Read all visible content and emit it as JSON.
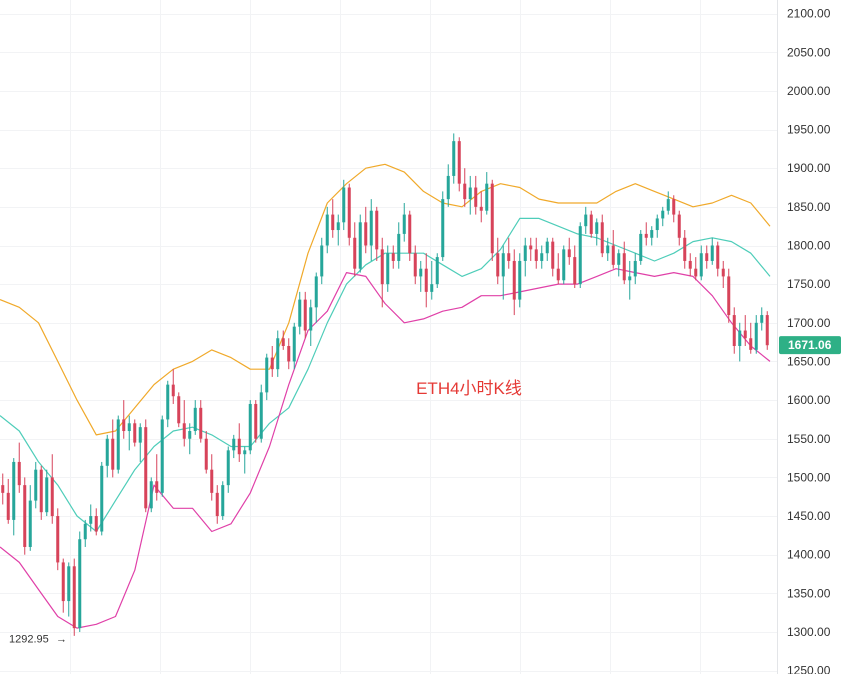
{
  "chart_data": {
    "type": "candlestick",
    "title": "",
    "annotation": "ETH4小时K线",
    "xlabel": "",
    "ylabel": "",
    "y_axis_side": "right",
    "ylim": [
      1250,
      2110
    ],
    "y_ticks": [
      "1250.00",
      "1300.00",
      "1350.00",
      "1400.00",
      "1450.00",
      "1500.00",
      "1550.00",
      "1600.00",
      "1650.00",
      "1700.00",
      "1750.00",
      "1800.00",
      "1850.00",
      "1900.00",
      "1950.00",
      "2000.00",
      "2050.00",
      "2100.00"
    ],
    "y_tick_values": [
      1250,
      1300,
      1350,
      1400,
      1450,
      1500,
      1550,
      1600,
      1650,
      1700,
      1750,
      1800,
      1850,
      1900,
      1950,
      2000,
      2050,
      2100
    ],
    "grid": true,
    "last_price_label": "1671.06",
    "last_price": 1671.06,
    "low_marker_label": "1292.95",
    "low_marker_value": 1292.95,
    "low_marker_arrow": "→",
    "colors": {
      "up": "#26a69a",
      "down": "#d7435a",
      "upper_band": "#f0a92a",
      "middle_band": "#4ecdb9",
      "lower_band": "#e040a8",
      "annotation": "#e53935",
      "axis_text": "#333333",
      "grid": "#f2f3f5",
      "price_tag": "#2eb086"
    },
    "candles": [
      [
        1490,
        1505,
        1465,
        1480
      ],
      [
        1480,
        1498,
        1440,
        1445
      ],
      [
        1445,
        1525,
        1425,
        1520
      ],
      [
        1520,
        1545,
        1480,
        1490
      ],
      [
        1490,
        1500,
        1400,
        1410
      ],
      [
        1410,
        1490,
        1405,
        1470
      ],
      [
        1470,
        1520,
        1460,
        1510
      ],
      [
        1510,
        1515,
        1445,
        1455
      ],
      [
        1455,
        1510,
        1450,
        1500
      ],
      [
        1500,
        1530,
        1440,
        1450
      ],
      [
        1450,
        1460,
        1380,
        1390
      ],
      [
        1390,
        1395,
        1325,
        1340
      ],
      [
        1340,
        1390,
        1320,
        1385
      ],
      [
        1385,
        1395,
        1295,
        1305
      ],
      [
        1305,
        1430,
        1300,
        1420
      ],
      [
        1420,
        1445,
        1410,
        1440
      ],
      [
        1440,
        1465,
        1430,
        1450
      ],
      [
        1450,
        1460,
        1425,
        1430
      ],
      [
        1430,
        1520,
        1425,
        1515
      ],
      [
        1515,
        1555,
        1500,
        1550
      ],
      [
        1550,
        1575,
        1500,
        1510
      ],
      [
        1510,
        1580,
        1505,
        1575
      ],
      [
        1575,
        1600,
        1550,
        1560
      ],
      [
        1560,
        1580,
        1535,
        1570
      ],
      [
        1570,
        1575,
        1540,
        1545
      ],
      [
        1545,
        1570,
        1520,
        1565
      ],
      [
        1565,
        1575,
        1455,
        1460
      ],
      [
        1460,
        1500,
        1455,
        1495
      ],
      [
        1495,
        1530,
        1470,
        1480
      ],
      [
        1480,
        1580,
        1475,
        1575
      ],
      [
        1575,
        1625,
        1565,
        1620
      ],
      [
        1620,
        1640,
        1595,
        1605
      ],
      [
        1605,
        1610,
        1565,
        1570
      ],
      [
        1570,
        1600,
        1540,
        1550
      ],
      [
        1550,
        1570,
        1530,
        1560
      ],
      [
        1560,
        1600,
        1555,
        1590
      ],
      [
        1590,
        1600,
        1545,
        1550
      ],
      [
        1550,
        1560,
        1505,
        1510
      ],
      [
        1510,
        1530,
        1470,
        1480
      ],
      [
        1480,
        1490,
        1440,
        1450
      ],
      [
        1450,
        1495,
        1445,
        1490
      ],
      [
        1490,
        1540,
        1480,
        1535
      ],
      [
        1535,
        1555,
        1525,
        1550
      ],
      [
        1550,
        1570,
        1520,
        1530
      ],
      [
        1530,
        1540,
        1505,
        1535
      ],
      [
        1535,
        1600,
        1530,
        1595
      ],
      [
        1595,
        1600,
        1545,
        1550
      ],
      [
        1550,
        1620,
        1545,
        1610
      ],
      [
        1610,
        1660,
        1600,
        1655
      ],
      [
        1655,
        1670,
        1630,
        1640
      ],
      [
        1640,
        1690,
        1630,
        1680
      ],
      [
        1680,
        1690,
        1665,
        1670
      ],
      [
        1670,
        1680,
        1640,
        1650
      ],
      [
        1650,
        1700,
        1640,
        1695
      ],
      [
        1695,
        1740,
        1685,
        1730
      ],
      [
        1730,
        1740,
        1680,
        1690
      ],
      [
        1690,
        1730,
        1670,
        1720
      ],
      [
        1720,
        1765,
        1700,
        1760
      ],
      [
        1760,
        1810,
        1750,
        1800
      ],
      [
        1800,
        1850,
        1790,
        1840
      ],
      [
        1840,
        1860,
        1810,
        1820
      ],
      [
        1820,
        1840,
        1800,
        1830
      ],
      [
        1830,
        1885,
        1820,
        1875
      ],
      [
        1875,
        1880,
        1800,
        1810
      ],
      [
        1810,
        1830,
        1760,
        1770
      ],
      [
        1770,
        1840,
        1765,
        1830
      ],
      [
        1830,
        1850,
        1790,
        1800
      ],
      [
        1800,
        1860,
        1780,
        1845
      ],
      [
        1845,
        1850,
        1780,
        1795
      ],
      [
        1795,
        1810,
        1720,
        1750
      ],
      [
        1750,
        1800,
        1740,
        1790
      ],
      [
        1790,
        1800,
        1770,
        1780
      ],
      [
        1780,
        1830,
        1770,
        1815
      ],
      [
        1815,
        1855,
        1805,
        1840
      ],
      [
        1840,
        1845,
        1780,
        1790
      ],
      [
        1790,
        1800,
        1750,
        1760
      ],
      [
        1760,
        1780,
        1740,
        1770
      ],
      [
        1770,
        1790,
        1720,
        1740
      ],
      [
        1740,
        1780,
        1730,
        1750
      ],
      [
        1750,
        1790,
        1745,
        1785
      ],
      [
        1785,
        1870,
        1780,
        1860
      ],
      [
        1860,
        1905,
        1850,
        1890
      ],
      [
        1890,
        1945,
        1880,
        1935
      ],
      [
        1935,
        1940,
        1870,
        1880
      ],
      [
        1880,
        1900,
        1850,
        1860
      ],
      [
        1860,
        1890,
        1840,
        1875
      ],
      [
        1875,
        1890,
        1840,
        1850
      ],
      [
        1850,
        1870,
        1830,
        1845
      ],
      [
        1845,
        1895,
        1840,
        1880
      ],
      [
        1880,
        1885,
        1780,
        1790
      ],
      [
        1790,
        1810,
        1750,
        1760
      ],
      [
        1760,
        1800,
        1730,
        1790
      ],
      [
        1790,
        1810,
        1770,
        1780
      ],
      [
        1780,
        1795,
        1710,
        1730
      ],
      [
        1730,
        1790,
        1720,
        1780
      ],
      [
        1780,
        1810,
        1760,
        1800
      ],
      [
        1800,
        1810,
        1780,
        1795
      ],
      [
        1795,
        1810,
        1770,
        1780
      ],
      [
        1780,
        1800,
        1770,
        1790
      ],
      [
        1790,
        1810,
        1780,
        1805
      ],
      [
        1805,
        1810,
        1760,
        1770
      ],
      [
        1770,
        1790,
        1750,
        1755
      ],
      [
        1755,
        1800,
        1750,
        1795
      ],
      [
        1795,
        1810,
        1775,
        1785
      ],
      [
        1785,
        1800,
        1745,
        1750
      ],
      [
        1750,
        1830,
        1745,
        1825
      ],
      [
        1825,
        1850,
        1815,
        1840
      ],
      [
        1840,
        1845,
        1810,
        1815
      ],
      [
        1815,
        1835,
        1800,
        1830
      ],
      [
        1830,
        1840,
        1785,
        1790
      ],
      [
        1790,
        1810,
        1780,
        1800
      ],
      [
        1800,
        1820,
        1770,
        1775
      ],
      [
        1775,
        1795,
        1760,
        1790
      ],
      [
        1790,
        1805,
        1750,
        1755
      ],
      [
        1755,
        1780,
        1730,
        1760
      ],
      [
        1760,
        1790,
        1750,
        1780
      ],
      [
        1780,
        1820,
        1775,
        1815
      ],
      [
        1815,
        1830,
        1800,
        1810
      ],
      [
        1810,
        1825,
        1800,
        1820
      ],
      [
        1820,
        1840,
        1810,
        1835
      ],
      [
        1835,
        1850,
        1825,
        1845
      ],
      [
        1845,
        1870,
        1840,
        1860
      ],
      [
        1860,
        1865,
        1830,
        1840
      ],
      [
        1840,
        1845,
        1800,
        1810
      ],
      [
        1810,
        1820,
        1770,
        1780
      ],
      [
        1780,
        1790,
        1760,
        1770
      ],
      [
        1770,
        1785,
        1755,
        1760
      ],
      [
        1760,
        1800,
        1755,
        1790
      ],
      [
        1790,
        1800,
        1770,
        1780
      ],
      [
        1780,
        1810,
        1775,
        1800
      ],
      [
        1800,
        1805,
        1760,
        1770
      ],
      [
        1770,
        1780,
        1745,
        1760
      ],
      [
        1760,
        1770,
        1700,
        1710
      ],
      [
        1710,
        1720,
        1660,
        1670
      ],
      [
        1670,
        1700,
        1650,
        1690
      ],
      [
        1690,
        1710,
        1670,
        1680
      ],
      [
        1680,
        1700,
        1660,
        1665
      ],
      [
        1665,
        1710,
        1660,
        1700
      ],
      [
        1700,
        1720,
        1690,
        1710
      ],
      [
        1710,
        1715,
        1665,
        1671
      ]
    ],
    "series": [
      {
        "values": [
          1730,
          1720,
          1700,
          1650,
          1600,
          1555,
          1560,
          1590,
          1620,
          1640,
          1650,
          1665,
          1655,
          1640,
          1640,
          1700,
          1790,
          1855,
          1880,
          1900,
          1905,
          1895,
          1870,
          1855,
          1850,
          1870,
          1880,
          1875,
          1860,
          1855,
          1855,
          1855,
          1870,
          1880,
          1870,
          1860,
          1850,
          1855,
          1865,
          1855,
          1825
        ]
      },
      {
        "values": [
          1580,
          1560,
          1520,
          1490,
          1450,
          1430,
          1470,
          1510,
          1540,
          1560,
          1565,
          1555,
          1540,
          1540,
          1570,
          1590,
          1640,
          1700,
          1750,
          1775,
          1790,
          1790,
          1790,
          1775,
          1760,
          1770,
          1795,
          1835,
          1835,
          1825,
          1815,
          1810,
          1800,
          1790,
          1780,
          1790,
          1805,
          1810,
          1805,
          1790,
          1760
        ]
      },
      {
        "values": [
          1410,
          1390,
          1355,
          1320,
          1305,
          1310,
          1320,
          1380,
          1490,
          1460,
          1460,
          1430,
          1440,
          1480,
          1540,
          1620,
          1690,
          1715,
          1765,
          1760,
          1725,
          1700,
          1705,
          1715,
          1720,
          1735,
          1735,
          1740,
          1745,
          1750,
          1750,
          1760,
          1770,
          1765,
          1760,
          1765,
          1760,
          1735,
          1700,
          1670,
          1650
        ]
      }
    ]
  }
}
